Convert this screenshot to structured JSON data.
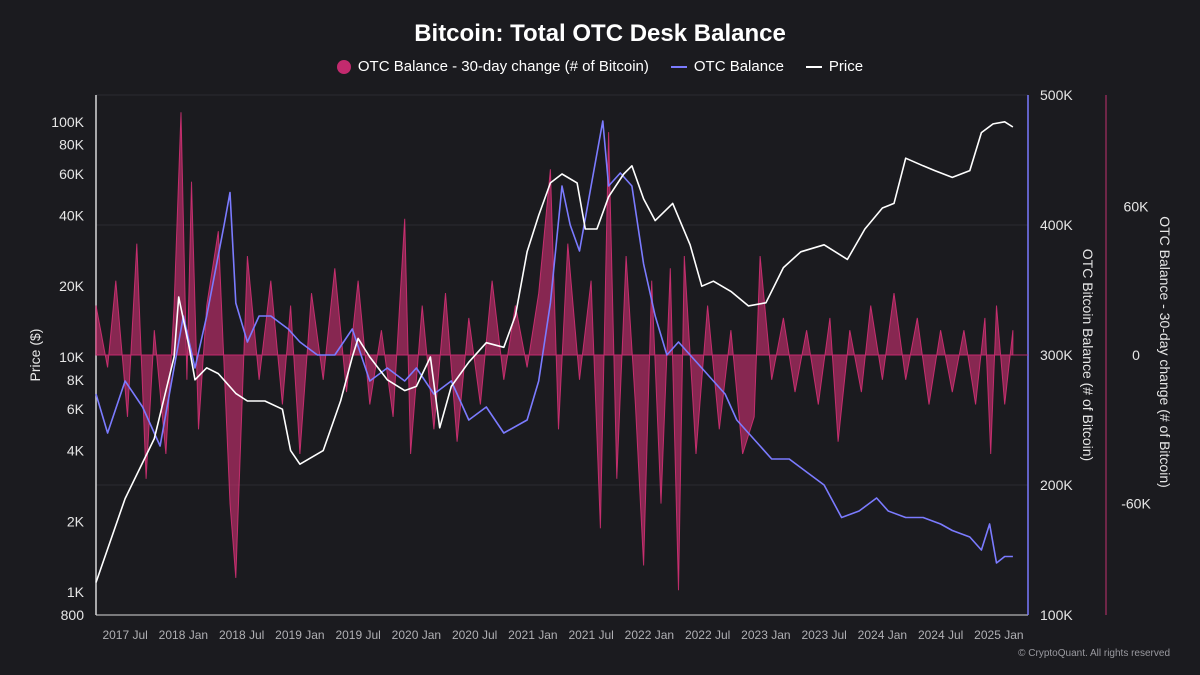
{
  "chart_data": {
    "type": "line",
    "title": "Bitcoin: Total OTC Desk Balance",
    "legend": [
      {
        "label": "OTC Balance - 30-day change (# of Bitcoin)",
        "color": "#e0327a",
        "shape": "dot"
      },
      {
        "label": "OTC Balance",
        "color": "#7b7bff",
        "shape": "line"
      },
      {
        "label": "Price",
        "color": "#ffffff",
        "shape": "line"
      }
    ],
    "x_axis": {
      "range": [
        2017.25,
        2025.25
      ],
      "tick_labels": [
        "2017 Jul",
        "2018 Jan",
        "2018 Jul",
        "2019 Jan",
        "2019 Jul",
        "2020 Jan",
        "2020 Jul",
        "2021 Jan",
        "2021 Jul",
        "2022 Jan",
        "2022 Jul",
        "2023 Jan",
        "2023 Jul",
        "2024 Jan",
        "2024 Jul",
        "2025 Jan"
      ],
      "tick_values": [
        2017.5,
        2018.0,
        2018.5,
        2019.0,
        2019.5,
        2020.0,
        2020.5,
        2021.0,
        2021.5,
        2022.0,
        2022.5,
        2023.0,
        2023.5,
        2024.0,
        2024.5,
        2025.0
      ]
    },
    "y_left": {
      "label": "Price ($)",
      "scale": "log",
      "range": [
        800,
        130000
      ],
      "tick_labels": [
        "100K",
        "80K",
        "60K",
        "40K",
        "20K",
        "10K",
        "8K",
        "6K",
        "4K",
        "2K",
        "1K",
        "800"
      ],
      "tick_values": [
        100000,
        80000,
        60000,
        40000,
        20000,
        10000,
        8000,
        6000,
        4000,
        2000,
        1000,
        800
      ]
    },
    "y_right_1": {
      "label": "OTC Bitcoin Balance (# of Bitcoin)",
      "range": [
        100000,
        500000
      ],
      "tick_labels": [
        "500K",
        "400K",
        "300K",
        "200K",
        "100K"
      ],
      "tick_values": [
        500000,
        400000,
        300000,
        200000,
        100000
      ]
    },
    "y_right_2": {
      "label": "OTC Balance - 30-day change (# of Bitcoin)",
      "range": [
        -105000,
        105000
      ],
      "tick_labels": [
        "60K",
        "0",
        "-60K"
      ],
      "tick_values": [
        60000,
        0,
        -60000
      ]
    },
    "series": [
      {
        "name": "Price",
        "axis": "y_left",
        "points": [
          [
            2017.25,
            1100
          ],
          [
            2017.5,
            2500
          ],
          [
            2017.75,
            4500
          ],
          [
            2017.92,
            10000
          ],
          [
            2017.96,
            18000
          ],
          [
            2018.05,
            11000
          ],
          [
            2018.1,
            8000
          ],
          [
            2018.2,
            9000
          ],
          [
            2018.3,
            8500
          ],
          [
            2018.45,
            7000
          ],
          [
            2018.55,
            6500
          ],
          [
            2018.7,
            6500
          ],
          [
            2018.85,
            6000
          ],
          [
            2018.92,
            4000
          ],
          [
            2019.0,
            3500
          ],
          [
            2019.2,
            4000
          ],
          [
            2019.35,
            6500
          ],
          [
            2019.45,
            10000
          ],
          [
            2019.5,
            12000
          ],
          [
            2019.6,
            10000
          ],
          [
            2019.75,
            8000
          ],
          [
            2019.9,
            7200
          ],
          [
            2020.0,
            7500
          ],
          [
            2020.12,
            10000
          ],
          [
            2020.2,
            5000
          ],
          [
            2020.3,
            7500
          ],
          [
            2020.45,
            9500
          ],
          [
            2020.6,
            11500
          ],
          [
            2020.75,
            11000
          ],
          [
            2020.85,
            15000
          ],
          [
            2020.95,
            28000
          ],
          [
            2021.05,
            40000
          ],
          [
            2021.15,
            55000
          ],
          [
            2021.25,
            60000
          ],
          [
            2021.38,
            55000
          ],
          [
            2021.45,
            35000
          ],
          [
            2021.55,
            35000
          ],
          [
            2021.65,
            48000
          ],
          [
            2021.78,
            60000
          ],
          [
            2021.85,
            65000
          ],
          [
            2021.95,
            47000
          ],
          [
            2022.05,
            38000
          ],
          [
            2022.2,
            45000
          ],
          [
            2022.35,
            30000
          ],
          [
            2022.45,
            20000
          ],
          [
            2022.55,
            21000
          ],
          [
            2022.7,
            19000
          ],
          [
            2022.85,
            16500
          ],
          [
            2023.0,
            17000
          ],
          [
            2023.15,
            24000
          ],
          [
            2023.3,
            28000
          ],
          [
            2023.5,
            30000
          ],
          [
            2023.7,
            26000
          ],
          [
            2023.85,
            35000
          ],
          [
            2024.0,
            43000
          ],
          [
            2024.1,
            45000
          ],
          [
            2024.2,
            70000
          ],
          [
            2024.35,
            65000
          ],
          [
            2024.45,
            62000
          ],
          [
            2024.6,
            58000
          ],
          [
            2024.75,
            62000
          ],
          [
            2024.85,
            90000
          ],
          [
            2024.95,
            98000
          ],
          [
            2025.05,
            100000
          ],
          [
            2025.12,
            95000
          ]
        ]
      },
      {
        "name": "OTC Balance",
        "axis": "y_right_1",
        "points": [
          [
            2017.25,
            270000
          ],
          [
            2017.35,
            240000
          ],
          [
            2017.5,
            280000
          ],
          [
            2017.65,
            260000
          ],
          [
            2017.8,
            230000
          ],
          [
            2017.9,
            280000
          ],
          [
            2018.0,
            330000
          ],
          [
            2018.1,
            290000
          ],
          [
            2018.2,
            330000
          ],
          [
            2018.35,
            400000
          ],
          [
            2018.4,
            425000
          ],
          [
            2018.45,
            340000
          ],
          [
            2018.55,
            310000
          ],
          [
            2018.65,
            330000
          ],
          [
            2018.75,
            330000
          ],
          [
            2018.9,
            320000
          ],
          [
            2019.0,
            310000
          ],
          [
            2019.15,
            300000
          ],
          [
            2019.3,
            300000
          ],
          [
            2019.45,
            320000
          ],
          [
            2019.6,
            280000
          ],
          [
            2019.75,
            290000
          ],
          [
            2019.9,
            280000
          ],
          [
            2020.0,
            290000
          ],
          [
            2020.15,
            270000
          ],
          [
            2020.3,
            280000
          ],
          [
            2020.45,
            250000
          ],
          [
            2020.6,
            260000
          ],
          [
            2020.75,
            240000
          ],
          [
            2020.95,
            250000
          ],
          [
            2021.05,
            280000
          ],
          [
            2021.15,
            340000
          ],
          [
            2021.25,
            430000
          ],
          [
            2021.32,
            400000
          ],
          [
            2021.4,
            380000
          ],
          [
            2021.5,
            430000
          ],
          [
            2021.6,
            480000
          ],
          [
            2021.65,
            430000
          ],
          [
            2021.75,
            440000
          ],
          [
            2021.85,
            430000
          ],
          [
            2021.95,
            370000
          ],
          [
            2022.05,
            330000
          ],
          [
            2022.15,
            300000
          ],
          [
            2022.25,
            310000
          ],
          [
            2022.35,
            300000
          ],
          [
            2022.45,
            290000
          ],
          [
            2022.55,
            280000
          ],
          [
            2022.65,
            270000
          ],
          [
            2022.75,
            250000
          ],
          [
            2022.85,
            240000
          ],
          [
            2022.95,
            230000
          ],
          [
            2023.05,
            220000
          ],
          [
            2023.2,
            220000
          ],
          [
            2023.35,
            210000
          ],
          [
            2023.5,
            200000
          ],
          [
            2023.65,
            175000
          ],
          [
            2023.8,
            180000
          ],
          [
            2023.95,
            190000
          ],
          [
            2024.05,
            180000
          ],
          [
            2024.2,
            175000
          ],
          [
            2024.35,
            175000
          ],
          [
            2024.5,
            170000
          ],
          [
            2024.6,
            165000
          ],
          [
            2024.75,
            160000
          ],
          [
            2024.85,
            150000
          ],
          [
            2024.92,
            170000
          ],
          [
            2024.98,
            140000
          ],
          [
            2025.05,
            145000
          ],
          [
            2025.12,
            145000
          ]
        ]
      },
      {
        "name": "OTC Balance - 30-day change",
        "axis": "y_right_2",
        "points": [
          [
            2017.25,
            20000
          ],
          [
            2017.35,
            -5000
          ],
          [
            2017.42,
            30000
          ],
          [
            2017.52,
            -25000
          ],
          [
            2017.6,
            45000
          ],
          [
            2017.68,
            -50000
          ],
          [
            2017.75,
            10000
          ],
          [
            2017.85,
            -40000
          ],
          [
            2017.92,
            20000
          ],
          [
            2017.98,
            98000
          ],
          [
            2018.03,
            -10000
          ],
          [
            2018.07,
            70000
          ],
          [
            2018.13,
            -30000
          ],
          [
            2018.2,
            20000
          ],
          [
            2018.3,
            50000
          ],
          [
            2018.4,
            -60000
          ],
          [
            2018.45,
            -90000
          ],
          [
            2018.55,
            40000
          ],
          [
            2018.65,
            -10000
          ],
          [
            2018.75,
            30000
          ],
          [
            2018.85,
            -20000
          ],
          [
            2018.92,
            20000
          ],
          [
            2019.0,
            -40000
          ],
          [
            2019.1,
            25000
          ],
          [
            2019.2,
            -10000
          ],
          [
            2019.3,
            35000
          ],
          [
            2019.4,
            -15000
          ],
          [
            2019.5,
            30000
          ],
          [
            2019.6,
            -20000
          ],
          [
            2019.7,
            10000
          ],
          [
            2019.8,
            -25000
          ],
          [
            2019.9,
            55000
          ],
          [
            2019.95,
            -40000
          ],
          [
            2020.05,
            20000
          ],
          [
            2020.15,
            -30000
          ],
          [
            2020.25,
            25000
          ],
          [
            2020.35,
            -35000
          ],
          [
            2020.45,
            15000
          ],
          [
            2020.55,
            -20000
          ],
          [
            2020.65,
            30000
          ],
          [
            2020.75,
            -10000
          ],
          [
            2020.85,
            20000
          ],
          [
            2020.95,
            -5000
          ],
          [
            2021.05,
            25000
          ],
          [
            2021.15,
            75000
          ],
          [
            2021.22,
            -30000
          ],
          [
            2021.3,
            45000
          ],
          [
            2021.4,
            -10000
          ],
          [
            2021.5,
            30000
          ],
          [
            2021.58,
            -70000
          ],
          [
            2021.65,
            90000
          ],
          [
            2021.72,
            -50000
          ],
          [
            2021.8,
            40000
          ],
          [
            2021.88,
            -20000
          ],
          [
            2021.95,
            -85000
          ],
          [
            2022.02,
            30000
          ],
          [
            2022.1,
            -60000
          ],
          [
            2022.18,
            35000
          ],
          [
            2022.25,
            -95000
          ],
          [
            2022.3,
            40000
          ],
          [
            2022.4,
            -40000
          ],
          [
            2022.5,
            20000
          ],
          [
            2022.6,
            -30000
          ],
          [
            2022.7,
            10000
          ],
          [
            2022.8,
            -40000
          ],
          [
            2022.9,
            -25000
          ],
          [
            2022.95,
            40000
          ],
          [
            2023.05,
            -10000
          ],
          [
            2023.15,
            15000
          ],
          [
            2023.25,
            -15000
          ],
          [
            2023.35,
            10000
          ],
          [
            2023.45,
            -20000
          ],
          [
            2023.55,
            15000
          ],
          [
            2023.62,
            -35000
          ],
          [
            2023.72,
            10000
          ],
          [
            2023.82,
            -15000
          ],
          [
            2023.9,
            20000
          ],
          [
            2024.0,
            -10000
          ],
          [
            2024.1,
            25000
          ],
          [
            2024.2,
            -10000
          ],
          [
            2024.3,
            15000
          ],
          [
            2024.4,
            -20000
          ],
          [
            2024.5,
            10000
          ],
          [
            2024.6,
            -15000
          ],
          [
            2024.7,
            10000
          ],
          [
            2024.8,
            -20000
          ],
          [
            2024.88,
            15000
          ],
          [
            2024.93,
            -40000
          ],
          [
            2024.98,
            20000
          ],
          [
            2025.05,
            -20000
          ],
          [
            2025.12,
            10000
          ]
        ]
      }
    ]
  },
  "copyright": "© CryptoQuant. All rights reserved",
  "colors": {
    "background": "#1b1b1f",
    "price": "#ffffff",
    "balance": "#7b7bff",
    "change": "#e0327a",
    "grid": "#2b2b30"
  }
}
